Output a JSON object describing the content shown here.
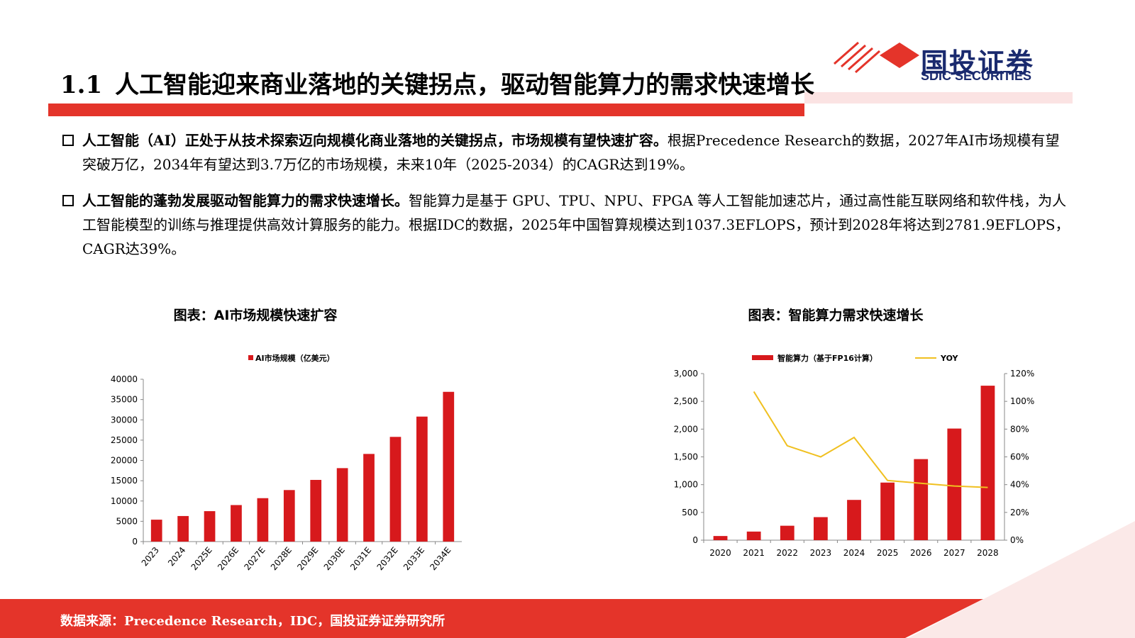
{
  "header": {
    "number": "1.1",
    "title": "人工智能迎来商业落地的关键拐点，驱动智能算力的需求快速增长",
    "logo": "国投证券",
    "logo_en": "SDIC SECURITIES"
  },
  "bullets": [
    {
      "bold": "人工智能（AI）正处于从技术探索迈向规模化商业落地的关键拐点，市场规模有望快速扩容。",
      "text": "根据Precedence Research的数据，2027年AI市场规模有望突破万亿，2034年有望达到3.7万亿的市场规模，未来10年（2025-2034）的CAGR达到19%。"
    },
    {
      "bold": "人工智能的蓬勃发展驱动智能算力的需求快速增长。",
      "text": "智能算力是基于 GPU、TPU、NPU、FPGA 等人工智能加速芯片，通过高性能互联网络和软件栈，为人工智能模型的训练与推理提供高效计算服务的能力。根据IDC的数据，2025年中国智算规模达到1037.3EFLOPS，预计到2028年将达到2781.9EFLOPS，CAGR达39%。"
    }
  ],
  "chart_data": [
    {
      "type": "bar",
      "title": "图表：AI市场规模快速扩容",
      "categories": [
        "2023",
        "2024",
        "2025E",
        "2026E",
        "2027E",
        "2028E",
        "2029E",
        "2030E",
        "2031E",
        "2032E",
        "2033E",
        "2034E"
      ],
      "series": [
        {
          "name": "AI市场规模（亿美元）",
          "color": "#d7191c",
          "type": "bar",
          "values": [
            5400,
            6300,
            7500,
            9000,
            10700,
            12700,
            15200,
            18100,
            21600,
            25800,
            30800,
            36900
          ]
        }
      ],
      "ylim": [
        0,
        40000
      ],
      "yticks": [
        0,
        5000,
        10000,
        15000,
        20000,
        25000,
        30000,
        35000,
        40000
      ],
      "grid": false
    },
    {
      "type": "bar",
      "title": "图表：智能算力需求快速增长",
      "categories": [
        "2020",
        "2021",
        "2022",
        "2023",
        "2024",
        "2025",
        "2026",
        "2027",
        "2028"
      ],
      "series": [
        {
          "name": "智能算力（基于FP16计算）",
          "color": "#d7191c",
          "type": "bar",
          "values": [
            75,
            155,
            260,
            415,
            725,
            1037.3,
            1460,
            2010,
            2781.9
          ]
        },
        {
          "name": "YOY",
          "color": "#f0c020",
          "type": "line",
          "axis": "y2",
          "values": [
            null,
            107,
            68,
            60,
            74,
            43,
            41,
            39,
            38
          ]
        }
      ],
      "ylim": [
        0,
        3000
      ],
      "yticks": [
        0,
        500,
        {
          "value": 1000,
          "label": "1,000"
        },
        {
          "value": 1500,
          "label": "1,500"
        },
        {
          "value": 2000,
          "label": "2,000"
        },
        {
          "value": 2500,
          "label": "2,500"
        },
        {
          "value": 3000,
          "label": "3,000"
        }
      ],
      "y2lim": [
        0,
        120
      ],
      "y2ticks": [
        {
          "value": 0,
          "label": "0%"
        },
        {
          "value": 20,
          "label": "20%"
        },
        {
          "value": 40,
          "label": "40%"
        },
        {
          "value": 60,
          "label": "60%"
        },
        {
          "value": 80,
          "label": "80%"
        },
        {
          "value": 100,
          "label": "100%"
        },
        {
          "value": 120,
          "label": "120%"
        }
      ],
      "grid": false
    }
  ],
  "source": "数据来源：Precedence Research，IDC，国投证券证券研究所"
}
